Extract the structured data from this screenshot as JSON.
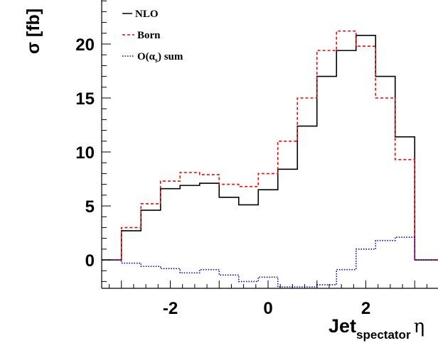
{
  "chart_data": {
    "type": "line",
    "step": true,
    "xlabel": {
      "main": "Jet",
      "subscript": "spectator",
      "symbol": "η"
    },
    "ylabel": "σ [fb]",
    "xlim": [
      -3.5,
      3.5
    ],
    "ylim": [
      -2.2,
      24
    ],
    "x_ticks": [
      -2,
      0,
      2
    ],
    "y_ticks": [
      0,
      5,
      10,
      15,
      20
    ],
    "bin_edges": [
      -4,
      -3.0,
      -2.6,
      -2.2,
      -1.8,
      -1.4,
      -1.0,
      -0.6,
      -0.2,
      0.2,
      0.6,
      1.0,
      1.4,
      1.8,
      2.2,
      2.6,
      3.0,
      4
    ],
    "series": [
      {
        "name": "NLO",
        "color": "#000000",
        "dash": "solid",
        "values": [
          0,
          2.7,
          4.6,
          6.6,
          6.9,
          7.1,
          5.8,
          5.1,
          6.5,
          8.4,
          12.4,
          17.0,
          19.4,
          20.8,
          17.0,
          11.4,
          0
        ]
      },
      {
        "name": "Born",
        "color": "#ff0000",
        "dash": "dashed",
        "values": [
          0,
          3.0,
          5.2,
          7.3,
          8.1,
          7.9,
          7.0,
          6.8,
          8.0,
          11.0,
          15.0,
          19.4,
          21.2,
          19.8,
          15.0,
          9.3,
          0
        ]
      },
      {
        "name": "O(α_s) sum",
        "color": "#0000cc",
        "dash": "dotted",
        "values": [
          0,
          -0.3,
          -0.6,
          -0.8,
          -1.2,
          -0.9,
          -1.4,
          -2.0,
          -1.6,
          -2.5,
          -2.5,
          -2.3,
          -0.9,
          1.0,
          1.8,
          2.1,
          0
        ]
      }
    ],
    "legend": [
      {
        "label": "NLO"
      },
      {
        "label": "Born"
      },
      {
        "label_main": "O(α",
        "label_sub": "s",
        "label_tail": ") sum"
      }
    ],
    "legend_position": "top-left",
    "grid": false
  }
}
